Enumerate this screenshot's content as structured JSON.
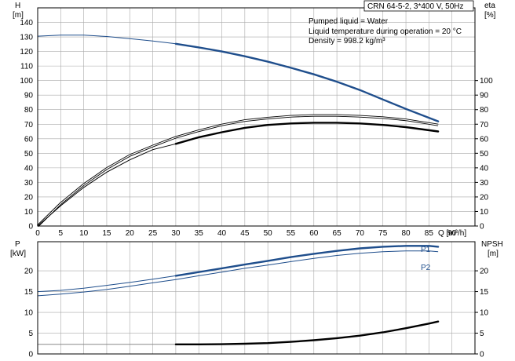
{
  "header": {
    "title": "CRN 64-5-2, 3*400 V, 50Hz",
    "info_lines": [
      "Pumped liquid = Water",
      "Liquid temperature during operation = 20 °C",
      "Density = 998.2 kg/m³"
    ]
  },
  "chart_data": [
    {
      "type": "line",
      "name": "head-efficiency",
      "xlabel": "Q [m³/h]",
      "ylabel_left_name": "H",
      "ylabel_left_unit": "[m]",
      "ylabel_right_name": "eta",
      "ylabel_right_unit": "[%]",
      "xlim": [
        0,
        95
      ],
      "xticks": [
        "0",
        "5",
        "10",
        "15",
        "20",
        "25",
        "30",
        "35",
        "40",
        "45",
        "50",
        "55",
        "60",
        "65",
        "70",
        "75",
        "80",
        "85",
        "90"
      ],
      "ylim_left": [
        0,
        150
      ],
      "yticks_left": [
        "0",
        "10",
        "20",
        "30",
        "40",
        "50",
        "60",
        "70",
        "80",
        "90",
        "100",
        "110",
        "120",
        "130",
        "140"
      ],
      "ylim_right": [
        0,
        150
      ],
      "yticks_right": [
        "0",
        "10",
        "20",
        "30",
        "40",
        "50",
        "60",
        "70",
        "80",
        "90",
        "100"
      ],
      "grid": true,
      "series": [
        {
          "role": "head",
          "color": "#1f4e8c",
          "thick_from": 30,
          "x": [
            0,
            5,
            10,
            15,
            20,
            25,
            30,
            35,
            40,
            45,
            50,
            55,
            60,
            65,
            70,
            75,
            80,
            87
          ],
          "y": [
            130.5,
            131.3,
            131.2,
            130.3,
            128.8,
            127.2,
            125.3,
            122.8,
            120.0,
            116.7,
            113.0,
            108.8,
            104.3,
            99.2,
            93.5,
            87.0,
            80.5,
            72.0
          ]
        },
        {
          "role": "efficiency-upper",
          "color": "#000000",
          "thick_from": 999,
          "x": [
            0,
            5,
            10,
            15,
            20,
            25,
            30,
            35,
            40,
            45,
            50,
            55,
            60,
            65,
            70,
            75,
            80,
            87
          ],
          "y": [
            0,
            15.5,
            28.5,
            39.5,
            48.5,
            55.0,
            61.0,
            65.5,
            69.5,
            72.5,
            74.2,
            75.5,
            76.0,
            76.0,
            75.5,
            74.5,
            73.0,
            69.5
          ]
        },
        {
          "role": "efficiency-lower",
          "color": "#000000",
          "thick_from": 30,
          "x": [
            0,
            5,
            10,
            15,
            20,
            25,
            30,
            35,
            40,
            45,
            50,
            55,
            60,
            65,
            70,
            75,
            80,
            87
          ],
          "y": [
            0,
            14.0,
            26.5,
            37.0,
            45.5,
            52.5,
            56.5,
            61.0,
            64.5,
            67.5,
            69.5,
            70.5,
            71.0,
            71.0,
            70.5,
            69.5,
            68.0,
            65.0
          ]
        }
      ]
    },
    {
      "type": "line",
      "name": "power-npsh",
      "ylabel_left_name": "P",
      "ylabel_left_unit": "[kW]",
      "ylabel_right_name": "NPSH",
      "ylabel_right_unit": "[m]",
      "xlim": [
        0,
        95
      ],
      "ylim_left": [
        0,
        27
      ],
      "yticks_left": [
        "0",
        "5",
        "10",
        "15",
        "20"
      ],
      "ylim_right": [
        0,
        27
      ],
      "yticks_right": [
        "0",
        "5",
        "10",
        "15",
        "20"
      ],
      "grid": true,
      "series": [
        {
          "name": "P1",
          "role": "power-p1",
          "color": "#1f4e8c",
          "thick_from": 30,
          "x": [
            0,
            5,
            10,
            15,
            20,
            25,
            30,
            35,
            40,
            45,
            50,
            55,
            60,
            65,
            70,
            75,
            80,
            85,
            87
          ],
          "y": [
            15.0,
            15.3,
            15.8,
            16.5,
            17.2,
            18.0,
            18.8,
            19.7,
            20.6,
            21.5,
            22.4,
            23.3,
            24.1,
            24.8,
            25.4,
            25.8,
            26.0,
            26.0,
            25.8
          ]
        },
        {
          "name": "P2",
          "role": "power-p2",
          "color": "#1f4e8c",
          "thick_from": 999,
          "x": [
            0,
            5,
            10,
            15,
            20,
            25,
            30,
            35,
            40,
            45,
            50,
            55,
            60,
            65,
            70,
            75,
            80,
            85,
            87
          ],
          "y": [
            14.0,
            14.4,
            14.9,
            15.5,
            16.3,
            17.1,
            17.9,
            18.8,
            19.7,
            20.6,
            21.4,
            22.2,
            23.0,
            23.7,
            24.2,
            24.6,
            24.8,
            24.8,
            24.6
          ]
        },
        {
          "role": "npsh",
          "color": "#000000",
          "thick_from": 30,
          "x": [
            0,
            5,
            10,
            15,
            20,
            25,
            30,
            35,
            40,
            45,
            50,
            55,
            60,
            65,
            70,
            75,
            80,
            85,
            87
          ],
          "y": [
            2.3,
            2.3,
            2.3,
            2.3,
            2.3,
            2.3,
            2.3,
            2.3,
            2.35,
            2.45,
            2.6,
            2.9,
            3.3,
            3.8,
            4.4,
            5.2,
            6.2,
            7.3,
            7.8
          ]
        }
      ]
    }
  ]
}
